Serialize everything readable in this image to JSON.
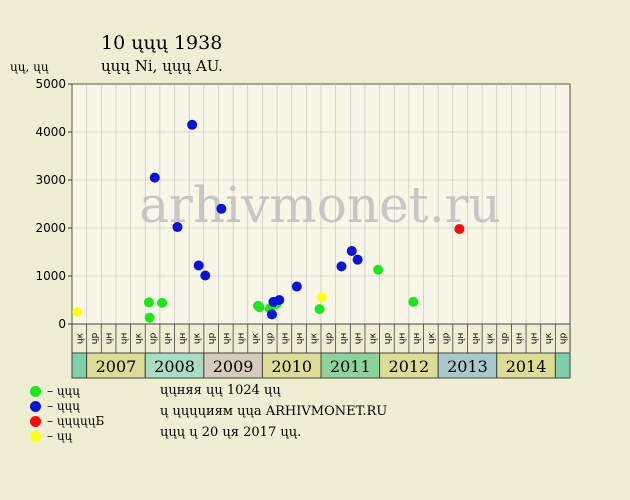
{
  "header": {
    "title": "10 ųųų 1938",
    "subtitle": "ųųų Ni, ųųų AU.",
    "y_unit": "ųų, ųų"
  },
  "watermark": "arhivmonet.ru",
  "colors": {
    "background": "#efedd2",
    "plot_bg": "#f8f6e6",
    "grid": "#bdbdbd",
    "green": "#1ee61e",
    "blue": "#0a14d6",
    "red": "#ff0a0a",
    "yellow": "#ffff14"
  },
  "legend": [
    {
      "label": "– ųųų",
      "color": "#1ee61e"
    },
    {
      "label": "– ųųų",
      "color": "#0a14d6"
    },
    {
      "label": "– ųųųųųБ",
      "color": "#ff0a0a"
    },
    {
      "label": "– ųų",
      "color": "#ffff14"
    }
  ],
  "notes": [
    "ųųняя ųų 1024 ųų",
    "ų ųųųųиям ųųа ARHIVMONET.RU",
    "ųųų ų 20 ųя 2017 ųų."
  ],
  "chart_data": {
    "type": "scatter",
    "ylim": [
      0,
      5000
    ],
    "yticks": [
      0,
      1000,
      2000,
      3000,
      4000,
      5000
    ],
    "quarter_labels": [
      "ųк",
      "ųр",
      "ųн",
      "ųн",
      "ųк",
      "ųр",
      "ųн",
      "ųн",
      "ųк",
      "ųр",
      "ųн",
      "ųн",
      "ųк",
      "ųр",
      "ųн",
      "ųн",
      "ųк",
      "ųр",
      "ųн",
      "ųн",
      "ųк",
      "ųр",
      "ųн",
      "ųн",
      "ųк",
      "ųр",
      "ųн",
      "ųн",
      "ųк",
      "ųр",
      "ųн",
      "ųн",
      "ųк",
      "ųр"
    ],
    "years": [
      {
        "label": "2007",
        "color": "#dcdc96"
      },
      {
        "label": "2008",
        "color": "#a9dcc3"
      },
      {
        "label": "2009",
        "color": "#d6cbbb"
      },
      {
        "label": "2010",
        "color": "#dcdc96"
      },
      {
        "label": "2011",
        "color": "#8ed49a"
      },
      {
        "label": "2012",
        "color": "#dcdc96"
      },
      {
        "label": "2013",
        "color": "#a9c8cc"
      },
      {
        "label": "2014",
        "color": "#dcdc96"
      }
    ],
    "edge_color": "#7fcfa8",
    "series": [
      {
        "color": "#1ee61e",
        "points": [
          {
            "x": 5.25,
            "y": 450
          },
          {
            "x": 5.3,
            "y": 130
          },
          {
            "x": 6.15,
            "y": 440
          },
          {
            "x": 12.7,
            "y": 380
          },
          {
            "x": 12.8,
            "y": 350
          },
          {
            "x": 13.5,
            "y": 320
          },
          {
            "x": 13.95,
            "y": 420
          },
          {
            "x": 16.9,
            "y": 310
          },
          {
            "x": 20.9,
            "y": 1130
          },
          {
            "x": 23.3,
            "y": 460
          }
        ]
      },
      {
        "color": "#0a14d6",
        "points": [
          {
            "x": 5.65,
            "y": 3050
          },
          {
            "x": 7.2,
            "y": 2020
          },
          {
            "x": 8.2,
            "y": 4150
          },
          {
            "x": 8.65,
            "y": 1220
          },
          {
            "x": 9.1,
            "y": 1010
          },
          {
            "x": 10.2,
            "y": 2400
          },
          {
            "x": 13.65,
            "y": 200
          },
          {
            "x": 13.75,
            "y": 460
          },
          {
            "x": 14.15,
            "y": 500
          },
          {
            "x": 15.35,
            "y": 780
          },
          {
            "x": 18.4,
            "y": 1200
          },
          {
            "x": 19.1,
            "y": 1520
          },
          {
            "x": 19.5,
            "y": 1340
          }
        ]
      },
      {
        "color": "#ff0a0a",
        "points": [
          {
            "x": 26.45,
            "y": 1980
          }
        ]
      },
      {
        "color": "#ffff14",
        "points": [
          {
            "x": 0.35,
            "y": 250
          },
          {
            "x": 17.05,
            "y": 560
          }
        ]
      }
    ]
  }
}
